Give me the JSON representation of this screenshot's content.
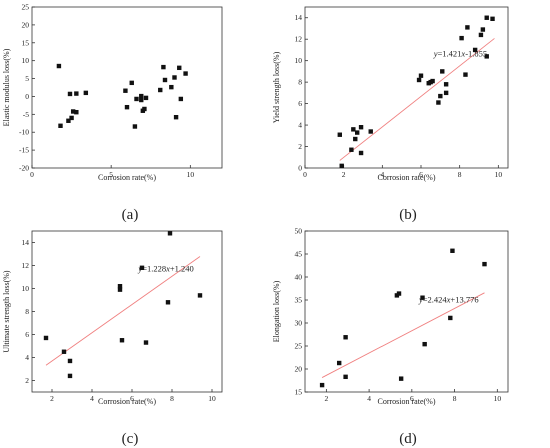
{
  "chart_data": [
    {
      "type": "scatter",
      "xlabel": "Corrosion rate(%)",
      "ylabel": "Elastic modulus loss(%)",
      "xlim": [
        0,
        12
      ],
      "ylim": [
        -20,
        25
      ],
      "xticks": [
        0,
        5,
        10
      ],
      "yticks": [
        -20,
        -15,
        -10,
        -5,
        0,
        5,
        10,
        15,
        20,
        25
      ],
      "panel_label": "(a)",
      "equation": "",
      "fit": null,
      "x": [
        1.7,
        1.8,
        2.3,
        2.4,
        2.5,
        2.6,
        2.8,
        2.8,
        3.4,
        5.9,
        6.0,
        6.3,
        6.5,
        6.6,
        6.9,
        6.9,
        7.0,
        7.1,
        7.2,
        8.1,
        8.3,
        8.4,
        8.8,
        9.0,
        9.1,
        9.3,
        9.4,
        9.7
      ],
      "y": [
        8.5,
        -8.2,
        -6.8,
        0.7,
        -6.0,
        -4.2,
        0.8,
        -4.4,
        1.0,
        1.6,
        -3.0,
        3.8,
        -8.4,
        -0.7,
        0.1,
        -1.0,
        -4.0,
        -3.5,
        -0.4,
        1.8,
        8.2,
        4.6,
        2.6,
        5.3,
        -5.8,
        8.0,
        -0.7,
        6.4
      ]
    },
    {
      "type": "scatter",
      "xlabel": "Corrosion rate(%)",
      "ylabel": "Yield strength loss(%)",
      "xlim": [
        0,
        10.5
      ],
      "ylim": [
        0,
        15
      ],
      "xticks": [
        0,
        2,
        4,
        6,
        8,
        10
      ],
      "yticks": [
        0,
        2,
        4,
        6,
        8,
        10,
        12,
        14
      ],
      "panel_label": "(b)",
      "equation": "y=1.421x-1.855",
      "fit": {
        "slope": 1.421,
        "intercept": -1.855,
        "x_range": [
          1.8,
          9.8
        ]
      },
      "x": [
        1.8,
        1.9,
        2.4,
        2.5,
        2.6,
        2.7,
        2.9,
        2.9,
        3.4,
        5.9,
        6.0,
        6.4,
        6.5,
        6.6,
        6.9,
        7.0,
        7.1,
        7.3,
        7.3,
        8.1,
        8.3,
        8.4,
        8.8,
        9.1,
        9.2,
        9.4,
        9.4,
        9.7
      ],
      "y": [
        3.1,
        0.2,
        1.7,
        3.6,
        2.7,
        3.3,
        3.8,
        1.4,
        3.4,
        8.2,
        8.6,
        7.9,
        8.0,
        8.1,
        6.1,
        6.7,
        9.0,
        7.0,
        7.8,
        12.1,
        8.7,
        13.1,
        11.0,
        12.4,
        12.9,
        10.4,
        14.0,
        13.9
      ]
    },
    {
      "type": "scatter",
      "xlabel": "Corrosion rate(%)",
      "ylabel": "Ultimate strength loss(%)",
      "xlim": [
        1,
        10.5
      ],
      "ylim": [
        1,
        15
      ],
      "xticks": [
        2,
        4,
        6,
        8,
        10
      ],
      "yticks": [
        2,
        4,
        6,
        8,
        10,
        12,
        14
      ],
      "panel_label": "(c)",
      "equation": "y=1.228x+1.240",
      "fit": {
        "slope": 1.228,
        "intercept": 1.24,
        "x_range": [
          1.7,
          9.4
        ]
      },
      "x": [
        1.7,
        2.6,
        2.9,
        2.9,
        5.4,
        5.4,
        5.5,
        6.5,
        6.7,
        7.8,
        7.9,
        9.4
      ],
      "y": [
        5.7,
        4.5,
        3.7,
        2.4,
        9.9,
        10.2,
        5.5,
        11.8,
        5.3,
        8.8,
        14.8,
        9.4
      ]
    },
    {
      "type": "scatter",
      "xlabel": "Corrosion rate(%)",
      "ylabel": "Elongation loss(%)",
      "xlim": [
        1,
        10.5
      ],
      "ylim": [
        15,
        50
      ],
      "xticks": [
        2,
        4,
        6,
        8,
        10
      ],
      "yticks": [
        15,
        20,
        25,
        30,
        35,
        40,
        45,
        50
      ],
      "panel_label": "(d)",
      "equation": "y=2.424x+13.776",
      "fit": {
        "slope": 2.424,
        "intercept": 13.776,
        "x_range": [
          1.8,
          9.4
        ]
      },
      "x": [
        1.8,
        2.6,
        2.9,
        2.9,
        5.3,
        5.4,
        5.5,
        6.5,
        6.6,
        7.8,
        7.9,
        9.4
      ],
      "y": [
        16.5,
        21.3,
        18.3,
        26.9,
        36.0,
        36.4,
        17.9,
        35.5,
        25.4,
        31.1,
        45.7,
        42.8
      ]
    }
  ],
  "style": {
    "marker_color": "#111111",
    "fit_color": "#f08080",
    "axis_color": "#333333"
  }
}
